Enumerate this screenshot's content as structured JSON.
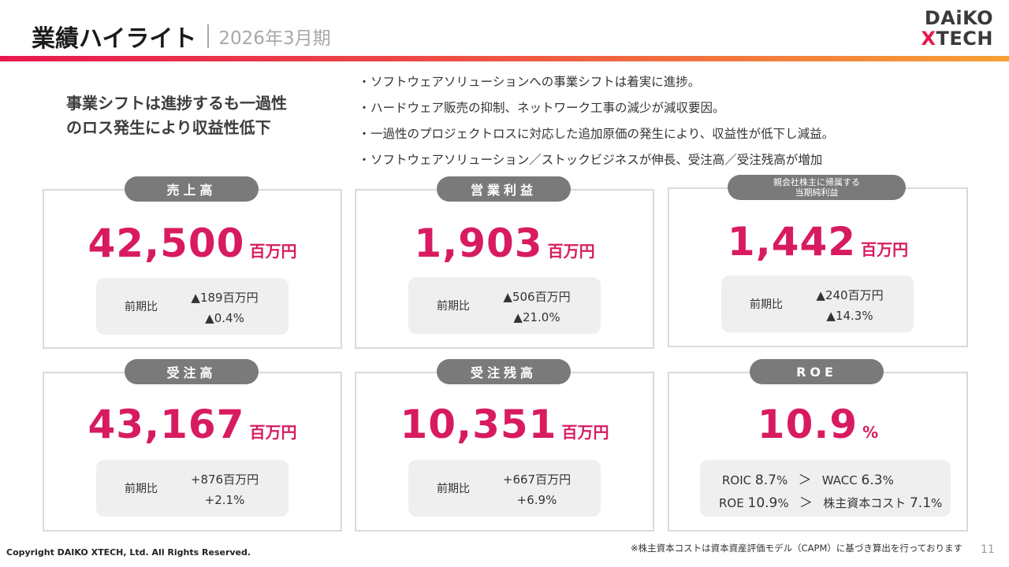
{
  "header": {
    "title": "業績ハイライト",
    "subtitle": "2026年3月期",
    "logo": {
      "line1": "DAiKO",
      "line2_x": "X",
      "line2_rest": "TECH"
    }
  },
  "lead": {
    "line1": "事業シフトは進捗するも一過性",
    "line2": "のロス発生により収益性低下"
  },
  "bullets": [
    "ソフトウェアソリューションへの事業シフトは着実に進捗。",
    "ハードウェア販売の抑制、ネットワーク工事の減少が減収要因。",
    "一過性のプロジェクトロスに対応した追加原価の発生により、収益性が低下し減益。",
    "ソフトウェアソリューション／ストックビジネスが伸長、受注高／受注残高が増加"
  ],
  "bullet_marker": "・",
  "cards": {
    "sales": {
      "label": "売上高",
      "value": "42,500",
      "unit": "百万円",
      "cmp_label": "前期比",
      "cmp_abs": "▲189百万円",
      "cmp_pct": "▲0.4%"
    },
    "op_income": {
      "label": "営業利益",
      "value": "1,903",
      "unit": "百万円",
      "cmp_label": "前期比",
      "cmp_abs": "▲506百万円",
      "cmp_pct": "▲21.0%"
    },
    "net_income": {
      "label_line1": "親会社株主に帰属する",
      "label_line2": "当期純利益",
      "value": "1,442",
      "unit": "百万円",
      "cmp_label": "前期比",
      "cmp_abs": "▲240百万円",
      "cmp_pct": "▲14.3%"
    },
    "orders": {
      "label": "受注高",
      "value": "43,167",
      "unit": "百万円",
      "cmp_label": "前期比",
      "cmp_abs": "+876百万円",
      "cmp_pct": "+2.1%"
    },
    "backlog": {
      "label": "受注残高",
      "value": "10,351",
      "unit": "百万円",
      "cmp_label": "前期比",
      "cmp_abs": "+667百万円",
      "cmp_pct": "+6.9%"
    },
    "roe": {
      "label": "ROE",
      "value": "10.9",
      "unit": "%",
      "row1": {
        "left_key": "ROIC",
        "left_val": "8.7",
        "left_unit": "%",
        "gt": "＞",
        "right_key": "WACC",
        "right_val": "6.3",
        "right_unit": "%"
      },
      "row2": {
        "left_key": "ROE",
        "left_val": "10.9",
        "left_unit": "%",
        "gt": "＞",
        "right_key": "株主資本コスト",
        "right_val": "7.1",
        "right_unit": "%"
      }
    }
  },
  "footer": {
    "copyright": "Copyright DAIKO XTECH, Ltd. All Rights Reserved.",
    "footnote": "※株主資本コストは資本資産評価モデル（CAPM）に基づき算出を行っております",
    "page_number": "11"
  },
  "colors": {
    "accent": "#d81b60",
    "pill": "#7a7a7a",
    "gradient_start": "#e8184f",
    "gradient_end": "#f6a136"
  }
}
